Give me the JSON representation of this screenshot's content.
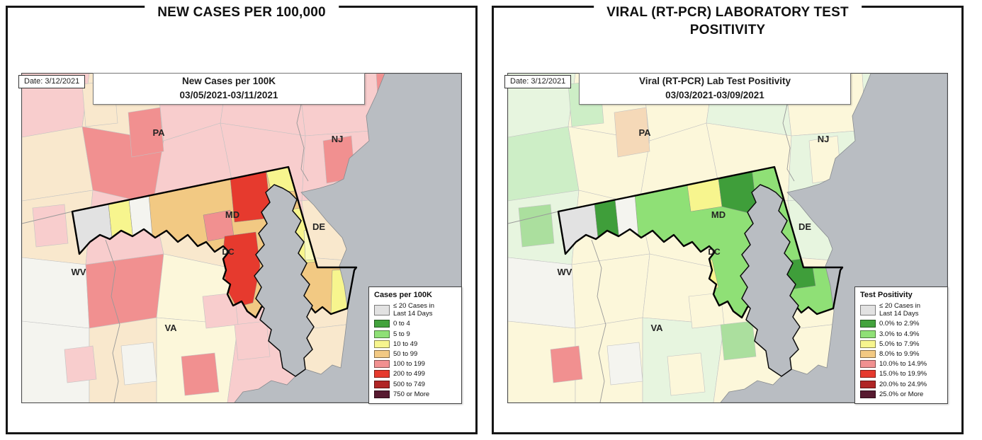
{
  "palette": {
    "gray": "#e2e2e2",
    "green": "#43a33d",
    "lightgreen": "#8fe076",
    "yellow": "#f7f58e",
    "tan": "#f2c983",
    "salmon": "#f19090",
    "red": "#e63a2e",
    "darkred": "#b02525",
    "maroon": "#571a30",
    "pink": "#f8cdcd",
    "cream": "#f9e8cd",
    "ivory": "#fcf7da",
    "whiteish": "#f4f4ef",
    "palegreen": "#e7f5df",
    "mint": "#cdeec6",
    "medgreen": "#abdf9e",
    "darkgreen": "#3f9e3a",
    "paleyellow": "#fafabe",
    "tanp": "#f5d9b8",
    "water": "#b9bdc2"
  },
  "left_panel": {
    "title_line1": "NEW CASES PER 100,000",
    "title_line2": "",
    "map": {
      "date_label": "Date: 3/12/2021",
      "title_line1": "New Cases per 100K",
      "title_line2": "03/05/2021-03/11/2021",
      "states": {
        "pa": "PA",
        "nj": "NJ",
        "md": "MD",
        "de": "DE",
        "dc": "DC",
        "wv": "WV",
        "va": "VA"
      },
      "cells": [
        "pink",
        "cream",
        "pink",
        "pink",
        "pink",
        "salmon",
        "cream",
        "salmon",
        "pink",
        "pink",
        "pink",
        "salmon",
        "cream",
        "pink",
        "cream",
        "pink",
        "cream",
        "pink",
        "whiteish",
        "salmon",
        "ivory",
        "pink",
        "cream",
        "cream",
        "whiteish",
        "cream",
        "ivory",
        "pink",
        "cream",
        "cream"
      ],
      "extra_counties": [
        "whiteish",
        "salmon",
        "pink",
        "salmon",
        "salmon",
        "cream",
        "pink",
        "pink",
        "pink"
      ],
      "md_patches": [
        {
          "shape": "mdShape",
          "color": "tan"
        },
        {
          "shape": "s1",
          "color": "gray"
        },
        {
          "shape": "s2",
          "color": "yellow"
        },
        {
          "shape": "s3",
          "color": "whiteish"
        },
        {
          "shape": "pRedN",
          "color": "red"
        },
        {
          "shape": "pCecil",
          "color": "yellow"
        },
        {
          "shape": "pMont",
          "color": "salmon"
        },
        {
          "shape": "pRedS",
          "color": "red"
        },
        {
          "shape": "pQA",
          "color": "yellow"
        },
        {
          "shape": "pQAp",
          "color": "paleyellow"
        },
        {
          "shape": "pWor",
          "color": "yellow"
        }
      ],
      "legend": {
        "title": "Cases per 100K",
        "no_data": {
          "color": "#e2e2e2",
          "line1": "≤ 20 Cases in",
          "line2": "Last 14 Days"
        },
        "items": [
          {
            "label": "0 to 4",
            "color": "#43a33d"
          },
          {
            "label": "5 to 9",
            "color": "#8fe076"
          },
          {
            "label": "10 to 49",
            "color": "#f7f58e"
          },
          {
            "label": "50 to 99",
            "color": "#f2c983"
          },
          {
            "label": "100 to 199",
            "color": "#f19090"
          },
          {
            "label": "200 to 499",
            "color": "#e63a2e"
          },
          {
            "label": "500 to 749",
            "color": "#b02525"
          },
          {
            "label": "750 or More",
            "color": "#571a30"
          }
        ]
      }
    }
  },
  "right_panel": {
    "title_line1": "VIRAL (RT-PCR) LABORATORY TEST",
    "title_line2": "POSITIVITY",
    "map": {
      "date_label": "Date: 3/12/2021",
      "title_line1": "Viral (RT-PCR) Lab Test Positivity",
      "title_line2": "03/03/2021-03/09/2021",
      "states": {
        "pa": "PA",
        "nj": "NJ",
        "md": "MD",
        "de": "DE",
        "dc": "DC",
        "wv": "WV",
        "va": "VA"
      },
      "cells": [
        "palegreen",
        "ivory",
        "ivory",
        "palegreen",
        "ivory",
        "palegreen",
        "mint",
        "ivory",
        "ivory",
        "ivory",
        "palegreen",
        "ivory",
        "palegreen",
        "ivory",
        "ivory",
        "ivory",
        "palegreen",
        "palegreen",
        "whiteish",
        "ivory",
        "ivory",
        "ivory",
        "ivory",
        "palegreen",
        "ivory",
        "ivory",
        "palegreen",
        "ivory",
        "ivory",
        "ivory"
      ],
      "extra_counties": [
        "whiteish",
        "ivory",
        "salmon",
        "tanp",
        "ivory",
        "mint",
        "medgreen",
        "ivory",
        "medgreen"
      ],
      "md_patches": [
        {
          "shape": "mdShape",
          "color": "lightgreen"
        },
        {
          "shape": "s1",
          "color": "gray"
        },
        {
          "shape": "s2",
          "color": "darkgreen"
        },
        {
          "shape": "s3",
          "color": "whiteish"
        },
        {
          "shape": "pYelN",
          "color": "yellow"
        },
        {
          "shape": "pDgNE",
          "color": "darkgreen"
        },
        {
          "shape": "pYelSW",
          "color": "yellow"
        },
        {
          "shape": "pDgSh",
          "color": "darkgreen"
        }
      ],
      "legend": {
        "title": "Test Positivity",
        "no_data": {
          "color": "#e2e2e2",
          "line1": "≤ 20 Cases in",
          "line2": "Last 14 Days"
        },
        "items": [
          {
            "label": "0.0% to 2.9%",
            "color": "#43a33d"
          },
          {
            "label": "3.0% to 4.9%",
            "color": "#8fe076"
          },
          {
            "label": "5.0% to 7.9%",
            "color": "#f7f58e"
          },
          {
            "label": "8.0% to 9.9%",
            "color": "#f2c983"
          },
          {
            "label": "10.0% to 14.9%",
            "color": "#f19090"
          },
          {
            "label": "15.0% to 19.9%",
            "color": "#e63a2e"
          },
          {
            "label": "20.0% to 24.9%",
            "color": "#b02525"
          },
          {
            "label": "25.0% or More",
            "color": "#571a30"
          }
        ]
      }
    }
  }
}
